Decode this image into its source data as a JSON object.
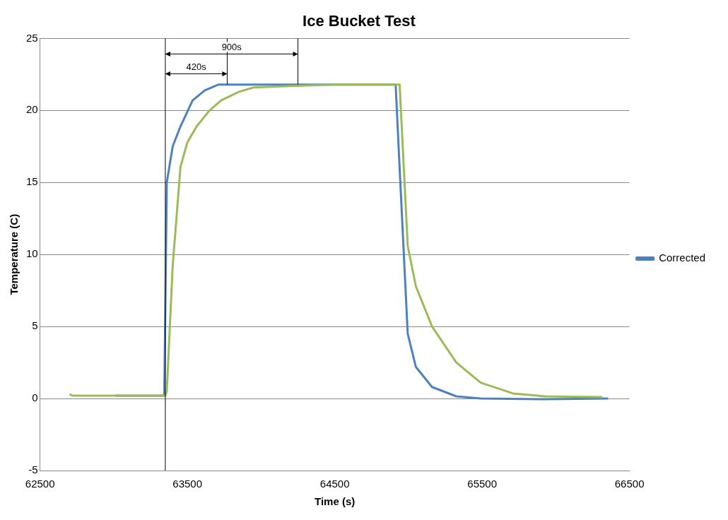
{
  "chart_data": {
    "type": "line",
    "title": "Ice Bucket Test",
    "xlabel": "Time (s)",
    "ylabel": "Temperature (C)",
    "xlim": [
      62500,
      66500
    ],
    "xticks": [
      62500,
      63500,
      64500,
      65500,
      66500
    ],
    "ylim": [
      -5,
      25
    ],
    "yticks": [
      -5,
      0,
      5,
      10,
      15,
      20,
      25
    ],
    "grid": "y",
    "legend": "right",
    "marker": "none",
    "line_style": "solid",
    "ref_lines": [
      {
        "axis": "x",
        "value": 63350,
        "label": null,
        "color": "#000000"
      },
      {
        "axis": "x",
        "value": 63770,
        "label": null,
        "color": "#000000"
      },
      {
        "axis": "x",
        "value": 64250,
        "label": null,
        "color": "#000000"
      }
    ],
    "annotations": [
      "420s",
      "900s"
    ],
    "series": [
      {
        "color": "#9bbb59",
        "x": [
          62700,
          62720,
          63350,
          63360,
          63400,
          63453,
          63500,
          63563,
          63650,
          63728,
          63850,
          63950,
          64200,
          64500,
          64925,
          64940,
          64995,
          65050,
          65160,
          65325,
          65490,
          65710,
          65930,
          66315
        ],
        "values": [
          0.3,
          0.2,
          0.2,
          0.5,
          9.2,
          16.1,
          17.8,
          18.9,
          20.0,
          20.7,
          21.3,
          21.6,
          21.7,
          21.8,
          21.8,
          21.8,
          10.6,
          7.8,
          5.0,
          2.5,
          1.1,
          0.35,
          0.15,
          0.1
        ]
      },
      {
        "name": "Corrected",
        "color": "#4f81bd",
        "x": [
          63012,
          63343,
          63360,
          63400,
          63453,
          63535,
          63618,
          63712,
          64000,
          64500,
          64913,
          64940,
          64995,
          65050,
          65160,
          65325,
          65490,
          65930,
          66355
        ],
        "values": [
          0.2,
          0.2,
          15,
          17.5,
          18.9,
          20.7,
          21.4,
          21.8,
          21.8,
          21.8,
          21.8,
          16,
          4.5,
          2.2,
          0.8,
          0.15,
          0,
          -0.05,
          0
        ]
      }
    ]
  }
}
